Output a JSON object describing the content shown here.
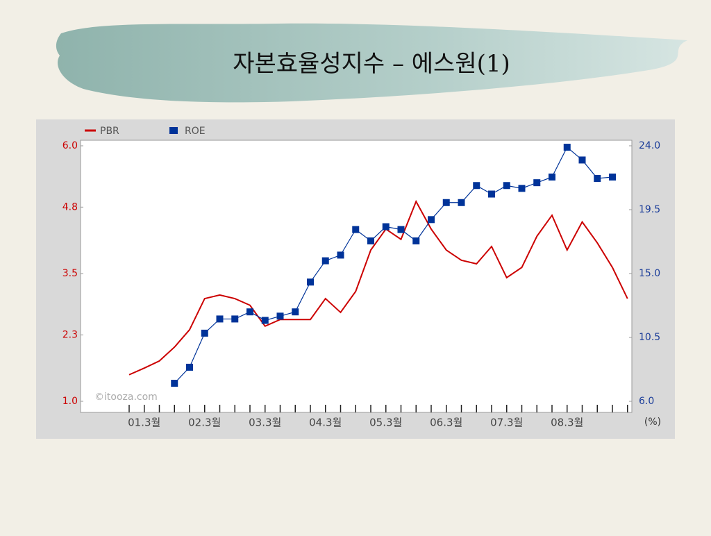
{
  "chart_data": {
    "type": "line",
    "title": "자본효율성지수 – 에스원(1)",
    "categories": [
      null,
      "01.3월",
      null,
      null,
      null,
      "02.3월",
      null,
      null,
      null,
      "03.3월",
      null,
      null,
      null,
      "04.3월",
      null,
      null,
      null,
      "05.3월",
      null,
      null,
      null,
      "06.3월",
      null,
      null,
      null,
      "07.3월",
      null,
      null,
      null,
      "08.3월",
      null,
      null,
      null,
      null
    ],
    "series": [
      {
        "name": "PBR",
        "color": "#cc0000",
        "axis": "y",
        "marker": "none",
        "values": [
          1.52,
          1.65,
          1.79,
          2.06,
          2.4,
          3.01,
          3.08,
          3.01,
          2.88,
          2.47,
          2.6,
          2.6,
          2.6,
          3.01,
          2.74,
          3.15,
          3.96,
          4.37,
          4.17,
          4.91,
          4.37,
          3.96,
          3.76,
          3.69,
          4.03,
          3.42,
          3.62,
          4.23,
          4.64,
          3.96,
          4.51,
          4.1,
          3.62,
          3.01
        ]
      },
      {
        "name": "ROE",
        "color": "#003399",
        "axis": "y2",
        "marker": "square",
        "values": [
          null,
          null,
          null,
          7.27,
          8.4,
          10.8,
          11.8,
          11.8,
          12.3,
          11.7,
          12.0,
          12.3,
          14.4,
          15.9,
          16.3,
          18.1,
          17.3,
          18.3,
          18.1,
          17.3,
          18.8,
          20.0,
          20.0,
          21.2,
          20.6,
          21.2,
          21.0,
          21.4,
          21.8,
          23.9,
          23.0,
          21.7,
          21.8,
          null
        ]
      }
    ],
    "ylim": [
      1,
      6
    ],
    "yticks": [
      {
        "value": 1,
        "label": "1.0"
      },
      2.3,
      3.5,
      4.8,
      {
        "value": 6,
        "label": "6.0"
      }
    ],
    "y2lim": [
      6,
      24
    ],
    "y2ticks": [
      {
        "value": 6,
        "label": "6.0"
      },
      10.5,
      {
        "value": 15,
        "label": "15.0"
      },
      19.5,
      {
        "value": 24,
        "label": "24.0"
      }
    ],
    "y2label": "(%)",
    "watermark": "©itooza.com",
    "legend": "top-left"
  }
}
